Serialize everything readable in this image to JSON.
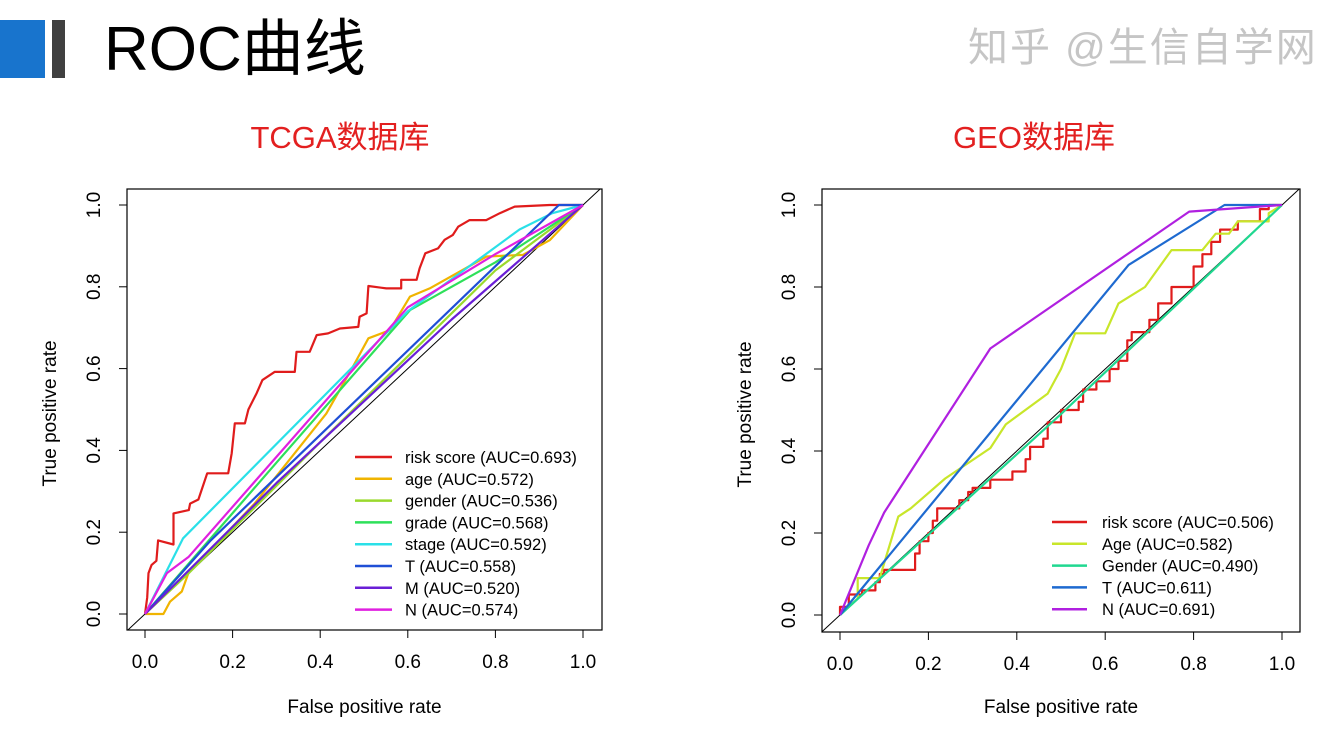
{
  "page": {
    "title": "ROC曲线",
    "accent_color": "#1874cd",
    "bar_color": "#404040",
    "watermark": "知乎 @生信自学网"
  },
  "chart_data": [
    {
      "type": "line",
      "title": "TCGA数据库",
      "title_color": "#e32020",
      "xlabel": "False positive rate",
      "ylabel": "True positive rate",
      "xlim": [
        0,
        1
      ],
      "ylim": [
        0,
        1
      ],
      "xticks": [
        "0.0",
        "0.2",
        "0.4",
        "0.6",
        "0.8",
        "1.0"
      ],
      "yticks": [
        "0.0",
        "0.2",
        "0.4",
        "0.6",
        "0.8",
        "1.0"
      ],
      "grid": false,
      "legend_position": "bottom-right",
      "reference_line": [
        [
          0,
          0
        ],
        [
          1,
          1
        ]
      ],
      "series": [
        {
          "name": "risk score (AUC=0.693)",
          "color": "#e01c1c",
          "points": [
            [
              0,
              0
            ],
            [
              0.005,
              0.04
            ],
            [
              0.008,
              0.1
            ],
            [
              0.015,
              0.12
            ],
            [
              0.026,
              0.13
            ],
            [
              0.03,
              0.18
            ],
            [
              0.065,
              0.17
            ],
            [
              0.065,
              0.246
            ],
            [
              0.1,
              0.254
            ],
            [
              0.103,
              0.27
            ],
            [
              0.122,
              0.28
            ],
            [
              0.142,
              0.344
            ],
            [
              0.19,
              0.344
            ],
            [
              0.198,
              0.393
            ],
            [
              0.205,
              0.466
            ],
            [
              0.228,
              0.466
            ],
            [
              0.236,
              0.5
            ],
            [
              0.255,
              0.54
            ],
            [
              0.268,
              0.572
            ],
            [
              0.296,
              0.592
            ],
            [
              0.342,
              0.592
            ],
            [
              0.346,
              0.641
            ],
            [
              0.376,
              0.641
            ],
            [
              0.392,
              0.682
            ],
            [
              0.418,
              0.686
            ],
            [
              0.445,
              0.698
            ],
            [
              0.487,
              0.702
            ],
            [
              0.49,
              0.727
            ],
            [
              0.506,
              0.735
            ],
            [
              0.51,
              0.802
            ],
            [
              0.551,
              0.796
            ],
            [
              0.585,
              0.796
            ],
            [
              0.585,
              0.817
            ],
            [
              0.62,
              0.817
            ],
            [
              0.627,
              0.845
            ],
            [
              0.64,
              0.882
            ],
            [
              0.669,
              0.894
            ],
            [
              0.684,
              0.915
            ],
            [
              0.703,
              0.927
            ],
            [
              0.715,
              0.947
            ],
            [
              0.741,
              0.963
            ],
            [
              0.779,
              0.963
            ],
            [
              0.81,
              0.98
            ],
            [
              0.844,
              0.996
            ],
            [
              0.924,
              1.0
            ],
            [
              1,
              1
            ]
          ]
        },
        {
          "name": "age (AUC=0.572)",
          "color": "#f0b400",
          "points": [
            [
              0,
              0
            ],
            [
              0.042,
              0
            ],
            [
              0.057,
              0.03
            ],
            [
              0.084,
              0.055
            ],
            [
              0.099,
              0.1
            ],
            [
              0.25,
              0.27
            ],
            [
              0.414,
              0.49
            ],
            [
              0.475,
              0.605
            ],
            [
              0.51,
              0.674
            ],
            [
              0.559,
              0.694
            ],
            [
              0.605,
              0.776
            ],
            [
              0.65,
              0.796
            ],
            [
              0.78,
              0.874
            ],
            [
              0.863,
              0.878
            ],
            [
              0.924,
              0.914
            ],
            [
              1,
              1
            ]
          ]
        },
        {
          "name": "gender (AUC=0.536)",
          "color": "#9ad92d",
          "points": [
            [
              0,
              0
            ],
            [
              0.1,
              0.1
            ],
            [
              0.4,
              0.42
            ],
            [
              0.6,
              0.63
            ],
            [
              0.8,
              0.84
            ],
            [
              1,
              1
            ]
          ]
        },
        {
          "name": "grade (AUC=0.568)",
          "color": "#2ee05a",
          "points": [
            [
              0,
              0
            ],
            [
              0.3,
              0.37
            ],
            [
              0.605,
              0.743
            ],
            [
              0.8,
              0.86
            ],
            [
              1,
              1
            ]
          ]
        },
        {
          "name": "stage (AUC=0.592)",
          "color": "#2ae0e8",
          "points": [
            [
              0,
              0
            ],
            [
              0.087,
              0.185
            ],
            [
              0.6,
              0.74
            ],
            [
              0.855,
              0.94
            ],
            [
              0.93,
              0.98
            ],
            [
              1,
              1
            ]
          ]
        },
        {
          "name": "T (AUC=0.558)",
          "color": "#1f4fd6",
          "points": [
            [
              0,
              0
            ],
            [
              0.15,
              0.18
            ],
            [
              0.945,
              1
            ],
            [
              1,
              1
            ]
          ]
        },
        {
          "name": "M (AUC=0.520)",
          "color": "#6a1fd6",
          "points": [
            [
              0,
              0
            ],
            [
              0.3,
              0.32
            ],
            [
              0.7,
              0.72
            ],
            [
              1,
              1
            ]
          ]
        },
        {
          "name": "N (AUC=0.574)",
          "color": "#e020e0",
          "points": [
            [
              0,
              0
            ],
            [
              0.05,
              0.1
            ],
            [
              0.1,
              0.14
            ],
            [
              0.6,
              0.75
            ],
            [
              0.8,
              0.88
            ],
            [
              1,
              1
            ]
          ]
        }
      ]
    },
    {
      "type": "line",
      "title": "GEO数据库",
      "title_color": "#e32020",
      "xlabel": "False positive rate",
      "ylabel": "True positive rate",
      "xlim": [
        0,
        1
      ],
      "ylim": [
        0,
        1
      ],
      "xticks": [
        "0.0",
        "0.2",
        "0.4",
        "0.6",
        "0.8",
        "1.0"
      ],
      "yticks": [
        "0.0",
        "0.2",
        "0.4",
        "0.6",
        "0.8",
        "1.0"
      ],
      "grid": false,
      "legend_position": "bottom-right",
      "reference_line": [
        [
          0,
          0
        ],
        [
          1,
          1
        ]
      ],
      "series": [
        {
          "name": "risk score (AUC=0.506)",
          "color": "#e01c1c",
          "points": [
            [
              0,
              0
            ],
            [
              0,
              0.02
            ],
            [
              0.02,
              0.02
            ],
            [
              0.02,
              0.05
            ],
            [
              0.05,
              0.05
            ],
            [
              0.05,
              0.06
            ],
            [
              0.08,
              0.06
            ],
            [
              0.08,
              0.08
            ],
            [
              0.09,
              0.08
            ],
            [
              0.09,
              0.1
            ],
            [
              0.1,
              0.1
            ],
            [
              0.1,
              0.11
            ],
            [
              0.17,
              0.11
            ],
            [
              0.17,
              0.15
            ],
            [
              0.18,
              0.15
            ],
            [
              0.18,
              0.18
            ],
            [
              0.2,
              0.18
            ],
            [
              0.2,
              0.2
            ],
            [
              0.21,
              0.2
            ],
            [
              0.21,
              0.23
            ],
            [
              0.22,
              0.23
            ],
            [
              0.22,
              0.26
            ],
            [
              0.27,
              0.26
            ],
            [
              0.27,
              0.28
            ],
            [
              0.29,
              0.28
            ],
            [
              0.29,
              0.3
            ],
            [
              0.3,
              0.3
            ],
            [
              0.3,
              0.31
            ],
            [
              0.34,
              0.31
            ],
            [
              0.34,
              0.33
            ],
            [
              0.39,
              0.33
            ],
            [
              0.39,
              0.35
            ],
            [
              0.42,
              0.35
            ],
            [
              0.42,
              0.38
            ],
            [
              0.43,
              0.38
            ],
            [
              0.43,
              0.41
            ],
            [
              0.46,
              0.41
            ],
            [
              0.46,
              0.43
            ],
            [
              0.47,
              0.43
            ],
            [
              0.47,
              0.47
            ],
            [
              0.5,
              0.47
            ],
            [
              0.5,
              0.5
            ],
            [
              0.54,
              0.5
            ],
            [
              0.54,
              0.52
            ],
            [
              0.55,
              0.52
            ],
            [
              0.55,
              0.55
            ],
            [
              0.58,
              0.55
            ],
            [
              0.58,
              0.57
            ],
            [
              0.61,
              0.57
            ],
            [
              0.61,
              0.6
            ],
            [
              0.63,
              0.6
            ],
            [
              0.63,
              0.62
            ],
            [
              0.65,
              0.62
            ],
            [
              0.65,
              0.67
            ],
            [
              0.66,
              0.67
            ],
            [
              0.66,
              0.69
            ],
            [
              0.7,
              0.69
            ],
            [
              0.7,
              0.72
            ],
            [
              0.72,
              0.72
            ],
            [
              0.72,
              0.76
            ],
            [
              0.75,
              0.76
            ],
            [
              0.75,
              0.8
            ],
            [
              0.8,
              0.8
            ],
            [
              0.8,
              0.85
            ],
            [
              0.82,
              0.85
            ],
            [
              0.82,
              0.88
            ],
            [
              0.84,
              0.88
            ],
            [
              0.84,
              0.91
            ],
            [
              0.86,
              0.91
            ],
            [
              0.86,
              0.94
            ],
            [
              0.9,
              0.94
            ],
            [
              0.9,
              0.96
            ],
            [
              0.95,
              0.96
            ],
            [
              0.95,
              0.99
            ],
            [
              0.97,
              0.99
            ],
            [
              0.97,
              1
            ],
            [
              1,
              1
            ]
          ]
        },
        {
          "name": "Age (AUC=0.582)",
          "color": "#c8e62a",
          "points": [
            [
              0,
              0
            ],
            [
              0.04,
              0.04
            ],
            [
              0.04,
              0.09
            ],
            [
              0.09,
              0.09
            ],
            [
              0.102,
              0.134
            ],
            [
              0.132,
              0.24
            ],
            [
              0.16,
              0.26
            ],
            [
              0.238,
              0.333
            ],
            [
              0.34,
              0.407
            ],
            [
              0.375,
              0.465
            ],
            [
              0.47,
              0.54
            ],
            [
              0.5,
              0.6
            ],
            [
              0.532,
              0.687
            ],
            [
              0.6,
              0.687
            ],
            [
              0.63,
              0.76
            ],
            [
              0.69,
              0.8
            ],
            [
              0.75,
              0.89
            ],
            [
              0.82,
              0.89
            ],
            [
              0.85,
              0.93
            ],
            [
              0.88,
              0.93
            ],
            [
              0.9,
              0.96
            ],
            [
              0.97,
              0.96
            ],
            [
              0.97,
              0.98
            ],
            [
              1,
              1
            ]
          ]
        },
        {
          "name": "Gender (AUC=0.490)",
          "color": "#20d890",
          "points": [
            [
              0,
              0
            ],
            [
              0.5,
              0.49
            ],
            [
              1,
              1
            ]
          ]
        },
        {
          "name": "T (AUC=0.611)",
          "color": "#1e6ad0",
          "points": [
            [
              0,
              0
            ],
            [
              0.653,
              0.854
            ],
            [
              0.87,
              1
            ],
            [
              1,
              1
            ]
          ]
        },
        {
          "name": "N (AUC=0.691)",
          "color": "#b020e0",
          "points": [
            [
              0,
              0
            ],
            [
              0.065,
              0.17
            ],
            [
              0.1,
              0.25
            ],
            [
              0.34,
              0.65
            ],
            [
              0.79,
              0.984
            ],
            [
              1,
              1
            ]
          ]
        }
      ]
    }
  ]
}
